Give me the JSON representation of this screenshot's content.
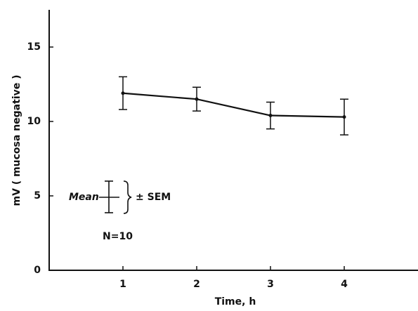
{
  "chart_data": {
    "type": "line",
    "x_label": "Time, h",
    "y_label": "mV ( mucosa negative )",
    "x": [
      1,
      2,
      3,
      4
    ],
    "series": [
      {
        "color": "#111111",
        "values": [
          11.9,
          11.5,
          10.4,
          10.3
        ],
        "errors": [
          1.1,
          0.8,
          0.9,
          1.2
        ]
      }
    ],
    "xlim": [
      0,
      5
    ],
    "xticks": [
      1,
      2,
      3,
      4
    ],
    "ylim": [
      0,
      17.5
    ],
    "yticks": [
      0,
      5,
      10,
      15
    ],
    "grid": false,
    "annotations": {
      "mean": "Mean",
      "sem": "± SEM",
      "n": "N=10"
    }
  }
}
